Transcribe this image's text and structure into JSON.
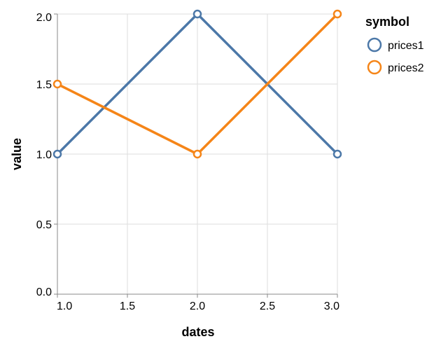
{
  "chart_data": {
    "type": "line",
    "xlabel": "dates",
    "ylabel": "value",
    "xlim": [
      1.0,
      3.0
    ],
    "ylim": [
      0.0,
      2.0
    ],
    "x_ticks": [
      "1.0",
      "1.5",
      "2.0",
      "2.5",
      "3.0"
    ],
    "y_ticks": [
      "0.0",
      "0.5",
      "1.0",
      "1.5",
      "2.0"
    ],
    "grid": true,
    "legend": {
      "title": "symbol",
      "placement": "right"
    },
    "series": [
      {
        "name": "prices1",
        "color": "#4c78a8",
        "x": [
          1.0,
          2.0,
          3.0
        ],
        "y": [
          1.0,
          2.0,
          1.0
        ]
      },
      {
        "name": "prices2",
        "color": "#f58518",
        "x": [
          1.0,
          2.0,
          3.0
        ],
        "y": [
          1.5,
          1.0,
          2.0
        ]
      }
    ]
  }
}
